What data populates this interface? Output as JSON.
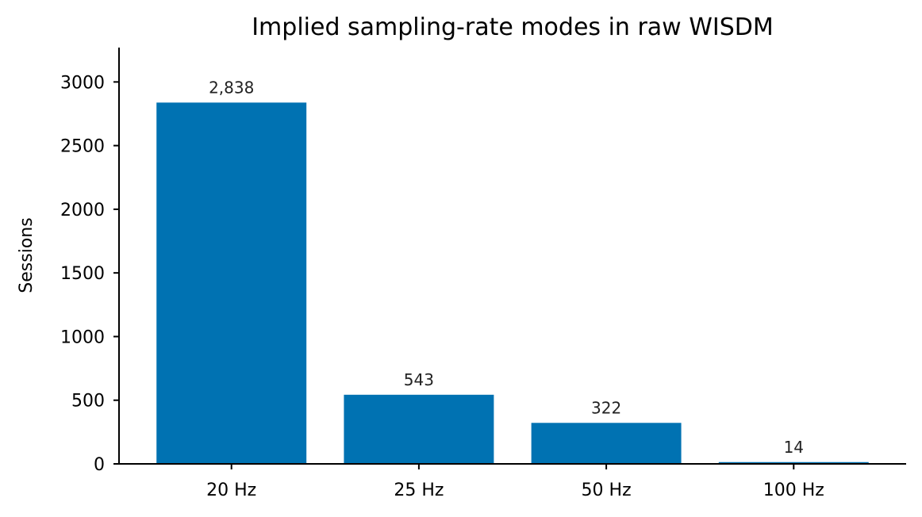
{
  "chart_data": {
    "type": "bar",
    "title": "Implied sampling-rate modes in raw WISDM",
    "xlabel": "",
    "ylabel": "Sessions",
    "categories": [
      "20 Hz",
      "25 Hz",
      "50 Hz",
      "100 Hz"
    ],
    "values": [
      2838,
      543,
      322,
      14
    ],
    "value_labels": [
      "2,838",
      "543",
      "322",
      "14"
    ],
    "ylim": [
      0,
      3270
    ],
    "yticks": [
      0,
      500,
      1000,
      1500,
      2000,
      2500,
      3000
    ],
    "ytick_labels": [
      "0",
      "500",
      "1000",
      "1500",
      "2000",
      "2500",
      "3000"
    ],
    "bar_color": "#0072b2",
    "grid": false,
    "legend": "none"
  }
}
